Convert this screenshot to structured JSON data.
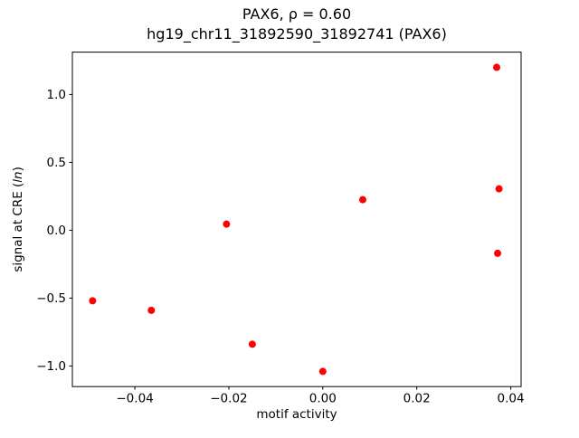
{
  "chart_data": {
    "type": "scatter",
    "title_line1": "PAX6, ρ = 0.60",
    "title_line2": "hg19_chr11_31892590_31892741 (PAX6)",
    "xlabel": "motif activity",
    "ylabel": "signal at CRE (ln)",
    "ylabel_prefix": "signal at CRE (",
    "ylabel_italic": "ln",
    "ylabel_suffix": ")",
    "marker_color": "#ff0000",
    "marker_shape": "circle",
    "background_color": "#ffffff",
    "grid": false,
    "legend": false,
    "xlim": [
      -0.0533,
      0.0422
    ],
    "ylim": [
      -1.152,
      1.312
    ],
    "xticks": [
      {
        "value": -0.04,
        "label": "−0.04"
      },
      {
        "value": -0.02,
        "label": "−0.02"
      },
      {
        "value": 0.0,
        "label": "0.00"
      },
      {
        "value": 0.02,
        "label": "0.02"
      },
      {
        "value": 0.04,
        "label": "0.04"
      }
    ],
    "yticks": [
      {
        "value": -1.0,
        "label": "−1.0"
      },
      {
        "value": -0.5,
        "label": "−0.5"
      },
      {
        "value": 0.0,
        "label": "0.0"
      },
      {
        "value": 0.5,
        "label": "0.5"
      },
      {
        "value": 1.0,
        "label": "1.0"
      }
    ],
    "points": [
      {
        "x": -0.049,
        "y": -0.52
      },
      {
        "x": -0.0365,
        "y": -0.59
      },
      {
        "x": -0.0205,
        "y": 0.045
      },
      {
        "x": -0.015,
        "y": -0.84
      },
      {
        "x": 0.0,
        "y": -1.04
      },
      {
        "x": 0.0085,
        "y": 0.225
      },
      {
        "x": 0.037,
        "y": 1.2
      },
      {
        "x": 0.0375,
        "y": 0.305
      },
      {
        "x": 0.0372,
        "y": -0.17
      }
    ]
  }
}
